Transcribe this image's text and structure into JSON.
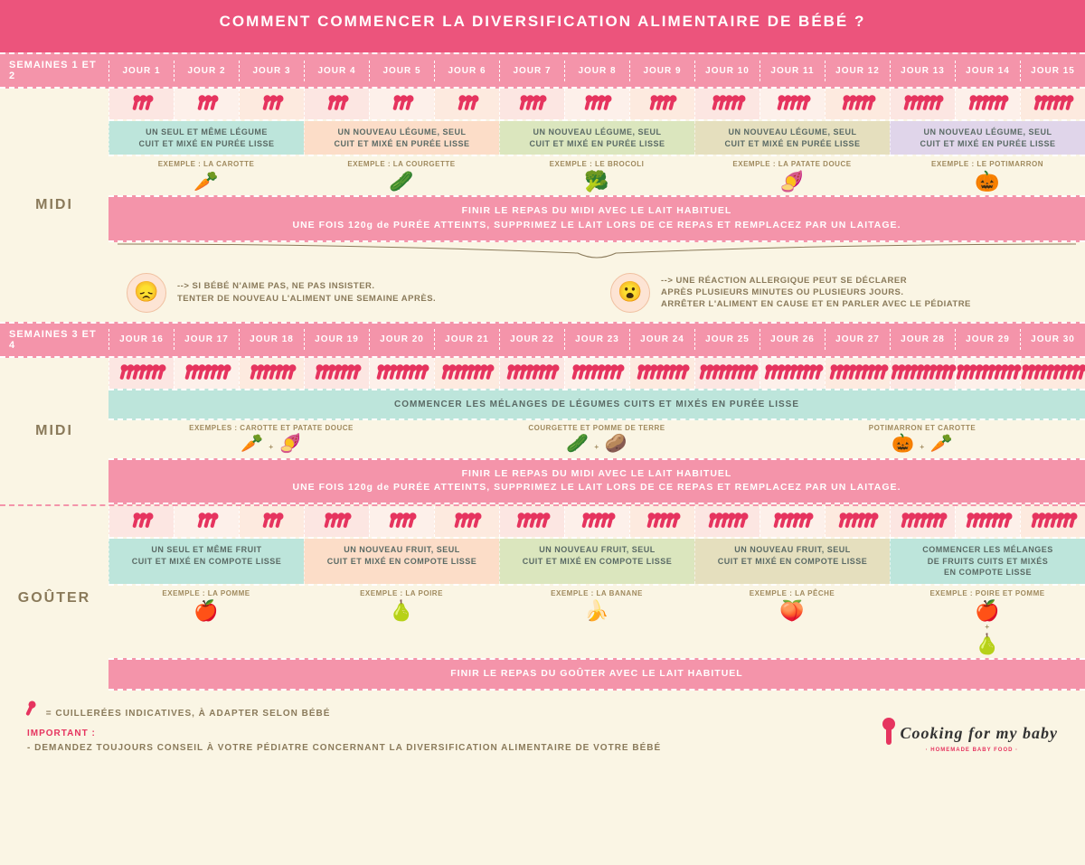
{
  "title": "COMMENT COMMENCER LA DIVERSIFICATION ALIMENTAIRE DE BÉBÉ ?",
  "week1": {
    "label": "SEMAINES 1 ET 2",
    "days": [
      "JOUR 1",
      "JOUR 2",
      "JOUR 3",
      "JOUR 4",
      "JOUR 5",
      "JOUR 6",
      "JOUR 7",
      "JOUR 8",
      "JOUR 9",
      "JOUR 10",
      "JOUR 11",
      "JOUR 12",
      "JOUR 13",
      "JOUR 14",
      "JOUR 15"
    ],
    "spoon_counts": [
      3,
      3,
      3,
      3,
      3,
      3,
      4,
      4,
      4,
      5,
      5,
      5,
      6,
      6,
      6
    ],
    "spoon_bgs": [
      "#fce6e2",
      "#fdf0ea",
      "#fdeadf",
      "#fce6e2",
      "#fdf0ea",
      "#fdeadf",
      "#fce6e2",
      "#fdf0ea",
      "#fdeadf",
      "#fce6e2",
      "#fdf0ea",
      "#fdeadf",
      "#fce6e2",
      "#fdf0ea",
      "#fdeadf"
    ],
    "legumes": [
      {
        "text": "UN SEUL ET MÊME LÉGUME\nCUIT ET MIXÉ EN PURÉE LISSE",
        "bg": "#bde5db",
        "ex": "EXEMPLE : LA CAROTTE",
        "icon": "🥕"
      },
      {
        "text": "UN NOUVEAU LÉGUME, SEUL\nCUIT ET MIXÉ EN PURÉE LISSE",
        "bg": "#fcddc8",
        "ex": "EXEMPLE : LA COURGETTE",
        "icon": "🥒"
      },
      {
        "text": "UN NOUVEAU LÉGUME, SEUL\nCUIT ET MIXÉ EN PURÉE LISSE",
        "bg": "#dbe6be",
        "ex": "EXEMPLE : LE BROCOLI",
        "icon": "🥦"
      },
      {
        "text": "UN NOUVEAU LÉGUME, SEUL\nCUIT ET MIXÉ EN PURÉE LISSE",
        "bg": "#e5dfbe",
        "ex": "EXEMPLE : LA PATATE DOUCE",
        "icon": "🍠"
      },
      {
        "text": "UN NOUVEAU LÉGUME, SEUL\nCUIT ET MIXÉ EN PURÉE LISSE",
        "bg": "#e0d5ea",
        "ex": "EXEMPLE : LE POTIMARRON",
        "icon": "🎃"
      }
    ],
    "midi_bar_l1": "FINIR LE REPAS DU MIDI AVEC LE LAIT HABITUEL",
    "midi_bar_l2": "UNE FOIS 120g de PURÉE ATTEINTS, SUPPRIMEZ LE LAIT LORS DE CE REPAS ET REMPLACEZ PAR UN LAITAGE.",
    "tip1": "--> SI BÉBÉ N'AIME PAS, NE PAS INSISTER.\nTENTER DE NOUVEAU L'ALIMENT UNE SEMAINE APRÈS.",
    "tip2": "--> UNE RÉACTION ALLERGIQUE PEUT SE DÉCLARER\nAPRÈS PLUSIEURS MINUTES OU PLUSIEURS JOURS.\nARRÊTER L'ALIMENT EN CAUSE ET EN PARLER AVEC LE PÉDIATRE"
  },
  "week3": {
    "label": "SEMAINES 3 ET 4",
    "days": [
      "JOUR 16",
      "JOUR 17",
      "JOUR 18",
      "JOUR 19",
      "JOUR 20",
      "JOUR 21",
      "JOUR 22",
      "JOUR 23",
      "JOUR 24",
      "JOUR 25",
      "JOUR 26",
      "JOUR 27",
      "JOUR 28",
      "JOUR 29",
      "JOUR 30"
    ],
    "midi_spoons": [
      7,
      7,
      7,
      7,
      8,
      8,
      8,
      8,
      8,
      9,
      9,
      9,
      10,
      10,
      10
    ],
    "midi_mix": "COMMENCER LES MÉLANGES DE LÉGUMES CUITS ET MIXÉS EN PURÉE LISSE",
    "mix_ex": [
      {
        "label": "EXEMPLES : CAROTTE ET PATATE DOUCE",
        "a": "🥕",
        "b": "🍠"
      },
      {
        "label": "COURGETTE ET POMME DE TERRE",
        "a": "🥒",
        "b": "🥔"
      },
      {
        "label": "POTIMARRON ET CAROTTE",
        "a": "🎃",
        "b": "🥕"
      }
    ],
    "midi_bar_l1": "FINIR LE REPAS DU MIDI AVEC LE LAIT HABITUEL",
    "midi_bar_l2": "UNE FOIS 120g de PURÉE ATTEINTS, SUPPRIMEZ LE LAIT LORS DE CE REPAS ET REMPLACEZ PAR UN LAITAGE.",
    "gouter_spoons": [
      3,
      3,
      3,
      4,
      4,
      4,
      5,
      5,
      5,
      6,
      6,
      6,
      7,
      7,
      7
    ],
    "fruits": [
      {
        "text": "UN SEUL ET MÊME FRUIT\nCUIT ET MIXÉ EN COMPOTE LISSE",
        "bg": "#bde5db",
        "ex": "EXEMPLE : LA POMME",
        "icon": "🍎"
      },
      {
        "text": "UN NOUVEAU FRUIT, SEUL\nCUIT ET MIXÉ EN COMPOTE LISSE",
        "bg": "#fcddc8",
        "ex": "EXEMPLE : LA POIRE",
        "icon": "🍐"
      },
      {
        "text": "UN NOUVEAU FRUIT, SEUL\nCUIT ET MIXÉ EN COMPOTE LISSE",
        "bg": "#dbe6be",
        "ex": "EXEMPLE : LA BANANE",
        "icon": "🍌"
      },
      {
        "text": "UN NOUVEAU FRUIT, SEUL\nCUIT ET MIXÉ EN COMPOTE LISSE",
        "bg": "#e5dfbe",
        "ex": "EXEMPLE : LA PÊCHE",
        "icon": "🍑"
      },
      {
        "text": "COMMENCER LES MÉLANGES\nDE FRUITS CUITS ET MIXÉS\nEN COMPOTE LISSE",
        "bg": "#bde5db",
        "ex": "EXEMPLE : POIRE ET POMME",
        "icon": "🍎",
        "icon2": "🍐"
      }
    ],
    "gouter_bar": "FINIR LE REPAS DU GOÛTER AVEC LE LAIT HABITUEL"
  },
  "meals": {
    "midi": "MIDI",
    "gouter": "GOÛTER"
  },
  "footer": {
    "spoon_legend": "= CUILLERÉES INDICATIVES, À ADAPTER SELON BÉBÉ",
    "important": "IMPORTANT :",
    "line": "- DEMANDEZ TOUJOURS CONSEIL À VOTRE PÉDIATRE CONCERNANT LA DIVERSIFICATION ALIMENTAIRE DE VOTRE BÉBÉ",
    "brand": "Cooking for my baby",
    "brand_sub": "· HOMEMADE BABY FOOD ·"
  },
  "colors": {
    "accent": "#e6345f",
    "header": "#ec547c",
    "bar": "#f494aa",
    "cream": "#faf5e4"
  }
}
